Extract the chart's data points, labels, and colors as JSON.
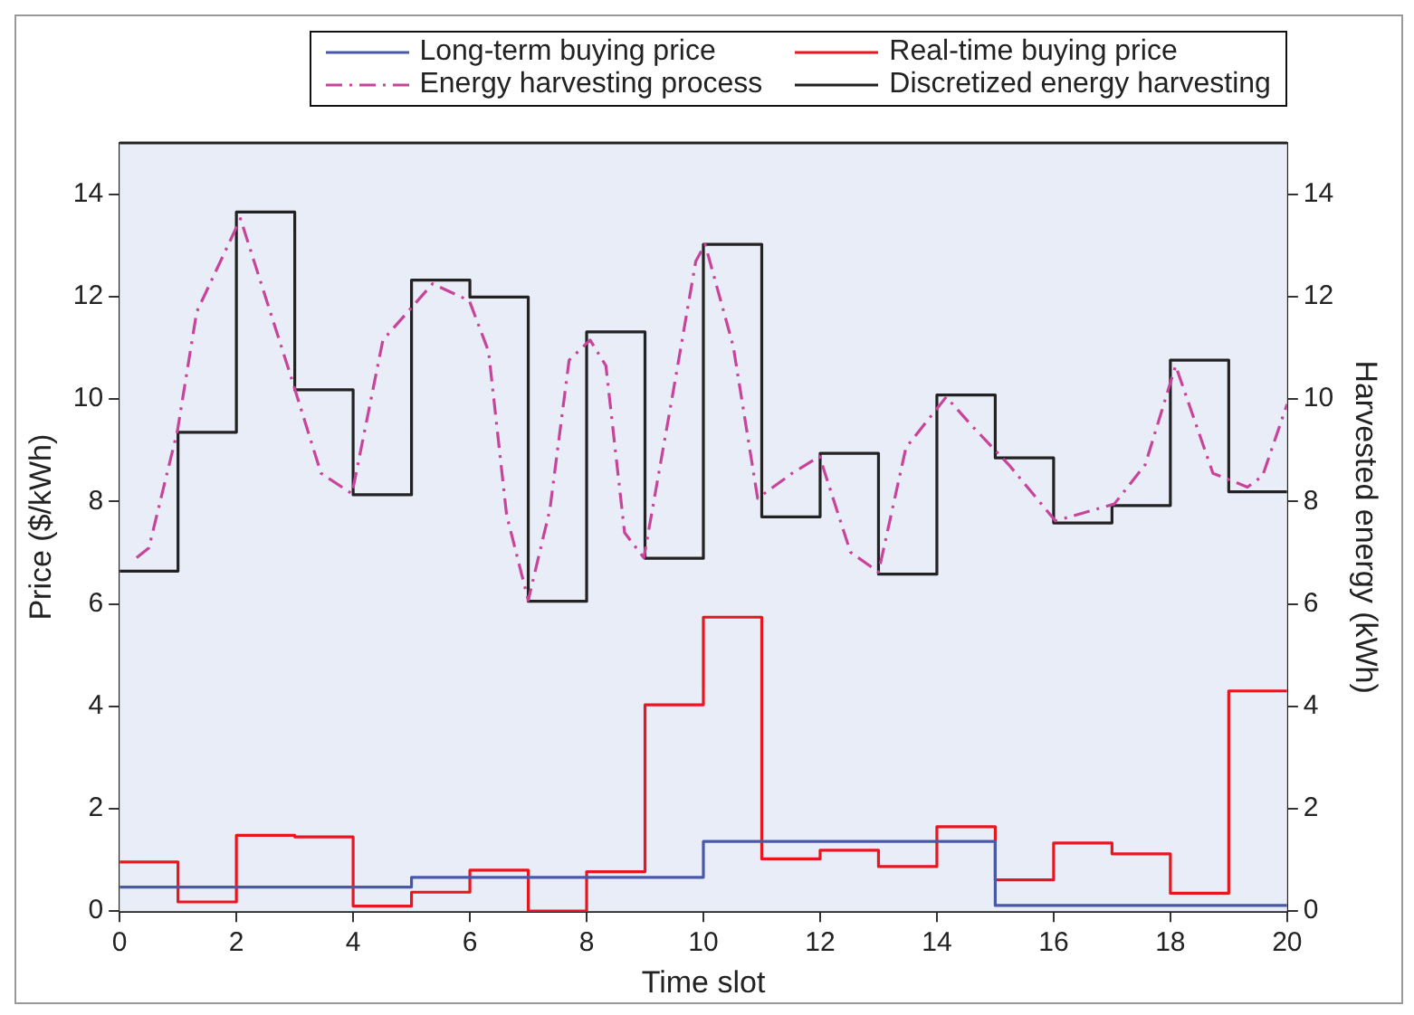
{
  "chart_data": {
    "type": "step",
    "xlabel": "Time slot",
    "ylabel": "Price ($/kWh)",
    "y2label": "Harvested energy (kWh)",
    "xlim": [
      0,
      20
    ],
    "xticks": [
      0,
      2,
      4,
      6,
      8,
      10,
      12,
      14,
      16,
      18,
      20
    ],
    "ylim": [
      0,
      15
    ],
    "yticks": [
      0,
      2,
      4,
      6,
      8,
      10,
      12,
      14
    ],
    "y2lim": [
      0,
      15
    ],
    "y2ticks": [
      0,
      2,
      4,
      6,
      8,
      10,
      12,
      14
    ],
    "legend": "top right",
    "series": [
      {
        "name": "Long-term buying price",
        "color": "#4a58a8",
        "line_style": "solid",
        "x": [
          0,
          1,
          2,
          3,
          4,
          5,
          6,
          7,
          8,
          9,
          10,
          11,
          12,
          13,
          14,
          15,
          16,
          17,
          18,
          19,
          20
        ],
        "values": [
          0.47,
          0.47,
          0.47,
          0.47,
          0.47,
          0.66,
          0.66,
          0.66,
          0.66,
          0.66,
          1.36,
          1.36,
          1.36,
          1.36,
          1.36,
          0.11,
          0.11,
          0.11,
          0.11,
          0.11,
          0.11
        ]
      },
      {
        "name": "Real-time buying price",
        "color": "#e8161e",
        "line_style": "solid",
        "x": [
          0,
          1,
          2,
          3,
          4,
          5,
          6,
          7,
          8,
          9,
          10,
          11,
          12,
          13,
          14,
          15,
          16,
          17,
          18,
          19,
          20
        ],
        "values": [
          0.96,
          0.18,
          1.48,
          1.45,
          0.1,
          0.37,
          0.8,
          0,
          0.77,
          4.03,
          5.74,
          1.02,
          1.19,
          0.87,
          1.65,
          0.61,
          1.33,
          1.12,
          0.35,
          4.3,
          4.3
        ]
      },
      {
        "name": "Energy harvesting process",
        "type": "line",
        "color": "#c8449a",
        "line_style": "dashed",
        "x": [
          0.29,
          0.5,
          0.99,
          1.32,
          2.07,
          2.92,
          3.45,
          3.98,
          4.51,
          5.36,
          5.99,
          6.32,
          6.63,
          7.0,
          7.37,
          7.7,
          8.06,
          8.33,
          8.65,
          8.98,
          9.45,
          9.87,
          10.03,
          10.51,
          10.93,
          11.52,
          11.99,
          12.52,
          13.0,
          13.47,
          14.16,
          14.59,
          15.23,
          16.03,
          17.04,
          17.57,
          18.09,
          18.73,
          19.32,
          19.58,
          20
        ],
        "values": [
          6.9,
          7.09,
          9.38,
          11.7,
          13.52,
          10.49,
          8.55,
          8.15,
          11.15,
          12.25,
          11.92,
          10.93,
          7.73,
          6.07,
          7.84,
          10.76,
          11.15,
          10.65,
          7.39,
          6.9,
          9.93,
          12.69,
          13.02,
          11.04,
          8.06,
          8.55,
          8.88,
          7.01,
          6.62,
          9.05,
          10.04,
          9.49,
          8.72,
          7.62,
          7.95,
          8.72,
          10.65,
          8.55,
          8.28,
          8.5,
          9.9
        ]
      },
      {
        "name": "Discretized energy harvesting",
        "color": "#222222",
        "line_style": "solid",
        "x": [
          0,
          1,
          2,
          3,
          4,
          5,
          6,
          7,
          8,
          9,
          10,
          11,
          12,
          13,
          14,
          15,
          16,
          17,
          18,
          19,
          20
        ],
        "values": [
          6.64,
          9.35,
          13.65,
          10.18,
          8.13,
          12.32,
          11.99,
          6.05,
          11.31,
          6.89,
          13.02,
          7.7,
          8.94,
          6.58,
          10.08,
          8.85,
          7.58,
          7.92,
          10.76,
          8.19,
          8.19
        ]
      }
    ]
  }
}
